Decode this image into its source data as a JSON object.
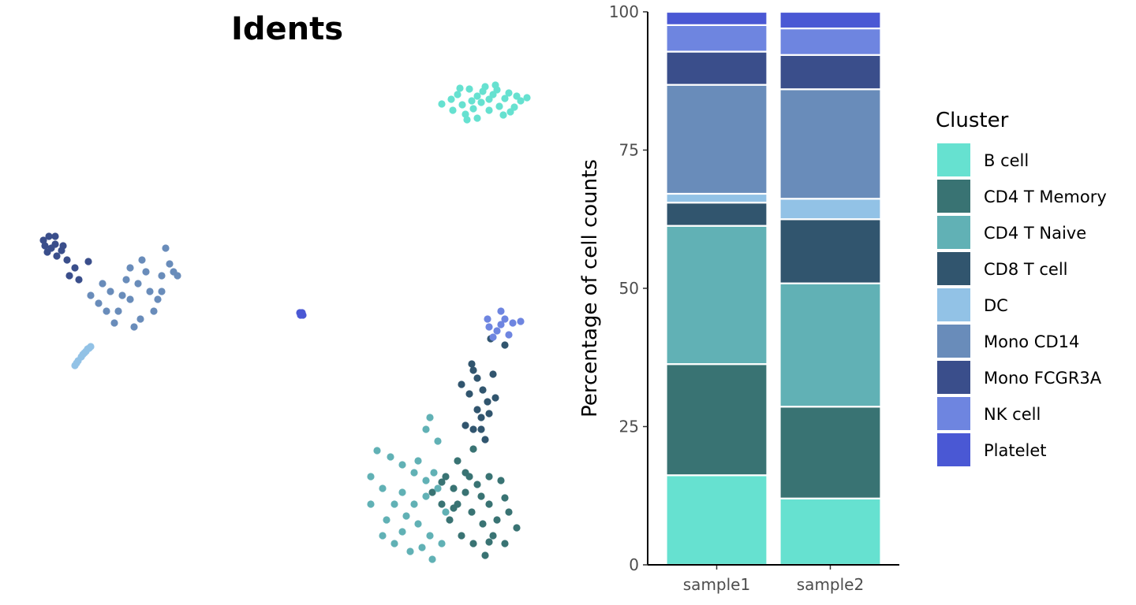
{
  "chart_data": [
    {
      "type": "scatter",
      "title": "Idents",
      "xlabel": "",
      "ylabel": "",
      "axes_visible": false,
      "grid": false,
      "clusters": [
        {
          "name": "B cell",
          "color": "#66E1D0",
          "points": [
            [
              598,
              128
            ],
            [
              612,
              116
            ],
            [
              625,
              120
            ],
            [
              640,
              125
            ],
            [
              655,
              122
            ],
            [
              668,
              124
            ],
            [
              586,
              133
            ],
            [
              574,
              140
            ],
            [
              590,
              145
            ],
            [
              605,
              150
            ],
            [
              620,
              140
            ],
            [
              633,
              135
            ],
            [
              647,
              142
            ],
            [
              560,
              132
            ],
            [
              580,
              120
            ],
            [
              595,
              113
            ],
            [
              610,
              130
            ],
            [
              628,
              108
            ],
            [
              645,
              118
            ],
            [
              660,
              128
            ],
            [
              572,
              126
            ],
            [
              600,
              138
            ],
            [
              615,
              110
            ],
            [
              638,
              146
            ],
            [
              652,
              136
            ],
            [
              583,
              112
            ],
            [
              620,
              126
            ],
            [
              605,
              122
            ],
            [
              592,
              152
            ],
            [
              630,
              114
            ]
          ]
        },
        {
          "name": "CD4 T Memory",
          "color": "#397373",
          "points": [
            [
              560,
              612
            ],
            [
              575,
              620
            ],
            [
              590,
              600
            ],
            [
              605,
              615
            ],
            [
              620,
              605
            ],
            [
              635,
              610
            ],
            [
              580,
              640
            ],
            [
              598,
              650
            ],
            [
              612,
              665
            ],
            [
              625,
              680
            ],
            [
              640,
              632
            ],
            [
              585,
              680
            ],
            [
              600,
              690
            ],
            [
              615,
              705
            ],
            [
              548,
              625
            ],
            [
              565,
              605
            ],
            [
              590,
              625
            ],
            [
              610,
              630
            ],
            [
              630,
              660
            ],
            [
              645,
              650
            ],
            [
              620,
              688
            ],
            [
              570,
              660
            ],
            [
              600,
              570
            ],
            [
              580,
              585
            ],
            [
              655,
              670
            ],
            [
              640,
              690
            ],
            [
              575,
              645
            ],
            [
              560,
              640
            ],
            [
              595,
              605
            ],
            [
              620,
              640
            ]
          ]
        },
        {
          "name": "CD4 T Naive",
          "color": "#61B1B5",
          "points": [
            [
              478,
              572
            ],
            [
              495,
              580
            ],
            [
              510,
              590
            ],
            [
              525,
              600
            ],
            [
              540,
              610
            ],
            [
              555,
              620
            ],
            [
              470,
              605
            ],
            [
              485,
              620
            ],
            [
              500,
              640
            ],
            [
              515,
              655
            ],
            [
              530,
              665
            ],
            [
              545,
              680
            ],
            [
              560,
              690
            ],
            [
              540,
              545
            ],
            [
              555,
              560
            ],
            [
              545,
              530
            ],
            [
              500,
              690
            ],
            [
              520,
              700
            ],
            [
              535,
              695
            ],
            [
              548,
              710
            ],
            [
              470,
              640
            ],
            [
              490,
              660
            ],
            [
              510,
              675
            ],
            [
              525,
              640
            ],
            [
              540,
              630
            ],
            [
              565,
              650
            ],
            [
              485,
              680
            ],
            [
              510,
              625
            ],
            [
              530,
              585
            ],
            [
              550,
              600
            ]
          ]
        },
        {
          "name": "CD8 T cell",
          "color": "#31556E",
          "points": [
            [
              598,
              462
            ],
            [
              605,
              480
            ],
            [
              612,
              495
            ],
            [
              618,
              510
            ],
            [
              620,
              525
            ],
            [
              610,
              530
            ],
            [
              600,
              545
            ],
            [
              615,
              558
            ],
            [
              590,
              540
            ],
            [
              605,
              520
            ],
            [
              625,
              475
            ],
            [
              595,
              500
            ],
            [
              628,
              505
            ],
            [
              640,
              438
            ],
            [
              622,
              430
            ],
            [
              585,
              488
            ],
            [
              600,
              470
            ],
            [
              610,
              545
            ]
          ]
        },
        {
          "name": "DC",
          "color": "#92C2E6",
          "points": [
            [
              95,
              464
            ],
            [
              99,
              458
            ],
            [
              103,
              453
            ],
            [
              107,
              448
            ],
            [
              111,
              443
            ],
            [
              115,
              440
            ],
            [
              97,
              461
            ],
            [
              105,
              450
            ],
            [
              109,
              446
            ],
            [
              113,
              442
            ]
          ]
        },
        {
          "name": "Mono CD14",
          "color": "#698CBA",
          "points": [
            [
              150,
              395
            ],
            [
              165,
              380
            ],
            [
              178,
              405
            ],
            [
              190,
              370
            ],
            [
              205,
              350
            ],
            [
              215,
              335
            ],
            [
              185,
              345
            ],
            [
              160,
              355
            ],
            [
              140,
              370
            ],
            [
              125,
              385
            ],
            [
              115,
              375
            ],
            [
              130,
              360
            ],
            [
              200,
              380
            ],
            [
              220,
              345
            ],
            [
              180,
              330
            ],
            [
              170,
              415
            ],
            [
              145,
              410
            ],
            [
              210,
              315
            ],
            [
              195,
              395
            ],
            [
              175,
              360
            ],
            [
              155,
              375
            ],
            [
              135,
              395
            ],
            [
              205,
              370
            ],
            [
              225,
              350
            ],
            [
              165,
              340
            ]
          ]
        },
        {
          "name": "Mono FCGR3A",
          "color": "#3A4E8B",
          "points": [
            [
              55,
              305
            ],
            [
              62,
              300
            ],
            [
              70,
              310
            ],
            [
              78,
              318
            ],
            [
              60,
              320
            ],
            [
              72,
              325
            ],
            [
              85,
              330
            ],
            [
              95,
              340
            ],
            [
              88,
              350
            ],
            [
              100,
              355
            ],
            [
              65,
              315
            ],
            [
              80,
              312
            ],
            [
              57,
              312
            ],
            [
              112,
              332
            ],
            [
              70,
              300
            ]
          ]
        },
        {
          "name": "NK cell",
          "color": "#6E85E0",
          "points": [
            [
              620,
              415
            ],
            [
              630,
              420
            ],
            [
              640,
              405
            ],
            [
              650,
              410
            ],
            [
              635,
              395
            ],
            [
              660,
              408
            ],
            [
              625,
              428
            ],
            [
              645,
              425
            ],
            [
              618,
              405
            ],
            [
              635,
              412
            ]
          ]
        },
        {
          "name": "Platelet",
          "color": "#4A58D4",
          "points": [
            [
              380,
              397
            ],
            [
              384,
              400
            ],
            [
              383,
              397
            ],
            [
              381,
              400
            ]
          ]
        }
      ]
    },
    {
      "type": "bar",
      "stacked": true,
      "title": "",
      "xlabel": "",
      "ylabel": "Percentage of cell counts",
      "ylim": [
        0,
        100
      ],
      "yticks": [
        0,
        25,
        50,
        75,
        100
      ],
      "grid": false,
      "legend_title": "Cluster",
      "legend_position": "right",
      "categories": [
        "sample1",
        "sample2"
      ],
      "series": [
        {
          "name": "B cell",
          "color": "#66E1D0",
          "values": [
            16.2,
            12.0
          ]
        },
        {
          "name": "CD4 T Memory",
          "color": "#397373",
          "values": [
            20.1,
            16.6
          ]
        },
        {
          "name": "CD4 T Naive",
          "color": "#61B1B5",
          "values": [
            25.0,
            22.3
          ]
        },
        {
          "name": "CD8 T cell",
          "color": "#31556E",
          "values": [
            4.2,
            11.6
          ]
        },
        {
          "name": "DC",
          "color": "#92C2E6",
          "values": [
            1.6,
            3.7
          ]
        },
        {
          "name": "Mono CD14",
          "color": "#698CBA",
          "values": [
            19.7,
            19.8
          ]
        },
        {
          "name": "Mono FCGR3A",
          "color": "#3A4E8B",
          "values": [
            6.0,
            6.2
          ]
        },
        {
          "name": "NK cell",
          "color": "#6E85E0",
          "values": [
            4.8,
            4.8
          ]
        },
        {
          "name": "Platelet",
          "color": "#4A58D4",
          "values": [
            2.4,
            3.0
          ]
        }
      ]
    }
  ]
}
